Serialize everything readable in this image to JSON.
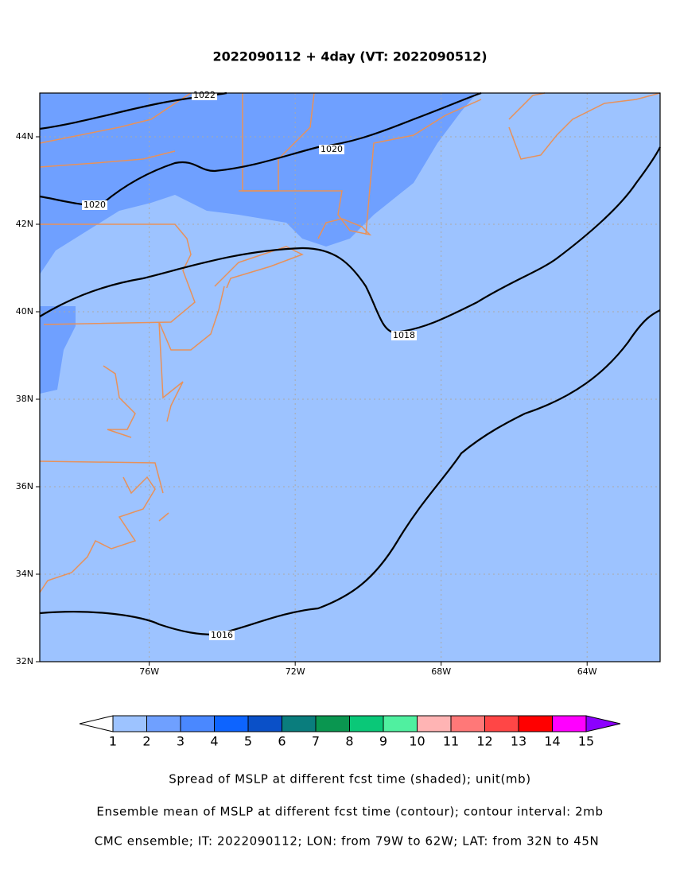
{
  "title": "2022090112 + 4day (VT: 2022090512)",
  "map": {
    "xlim": [
      -79,
      -62
    ],
    "ylim": [
      32,
      45
    ],
    "xticks": [
      {
        "value": -76,
        "label": "76W"
      },
      {
        "value": -72,
        "label": "72W"
      },
      {
        "value": -68,
        "label": "68W"
      },
      {
        "value": -64,
        "label": "64W"
      }
    ],
    "yticks": [
      {
        "value": 32,
        "label": "32N"
      },
      {
        "value": 34,
        "label": "34N"
      },
      {
        "value": 36,
        "label": "36N"
      },
      {
        "value": 38,
        "label": "38N"
      },
      {
        "value": 40,
        "label": "40N"
      },
      {
        "value": 42,
        "label": "42N"
      },
      {
        "value": 44,
        "label": "44N"
      }
    ],
    "contour_labels": [
      "1022",
      "1020",
      "1020",
      "1018",
      "1016"
    ]
  },
  "colorbar": {
    "levels": [
      1,
      2,
      3,
      4,
      5,
      6,
      7,
      8,
      9,
      10,
      11,
      12,
      13,
      14,
      15
    ],
    "colors": [
      "#9dc3ff",
      "#6fa0ff",
      "#4a88ff",
      "#0d64ff",
      "#0a50c8",
      "#0a7d7d",
      "#0a9650",
      "#0ac878",
      "#50f0a0",
      "#ffb4b4",
      "#ff7878",
      "#ff4646",
      "#ff0000",
      "#ff00ff"
    ],
    "over_color": "#8c00ff"
  },
  "captions": [
    "Spread of MSLP at different fcst time (shaded); unit(mb)",
    "Ensemble mean of MSLP at different fcst time (contour); contour interval: 2mb",
    "CMC ensemble; IT: 2022090112; LON: from 79W to 62W; LAT: from 32N to 45N"
  ]
}
